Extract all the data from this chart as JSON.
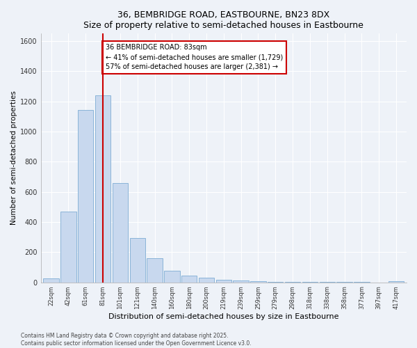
{
  "title": "36, BEMBRIDGE ROAD, EASTBOURNE, BN23 8DX",
  "subtitle": "Size of property relative to semi-detached houses in Eastbourne",
  "xlabel": "Distribution of semi-detached houses by size in Eastbourne",
  "ylabel": "Number of semi-detached properties",
  "bar_labels": [
    "22sqm",
    "42sqm",
    "61sqm",
    "81sqm",
    "101sqm",
    "121sqm",
    "140sqm",
    "160sqm",
    "180sqm",
    "200sqm",
    "219sqm",
    "239sqm",
    "259sqm",
    "279sqm",
    "298sqm",
    "318sqm",
    "338sqm",
    "358sqm",
    "377sqm",
    "397sqm",
    "417sqm"
  ],
  "bar_values": [
    25,
    470,
    1145,
    1240,
    660,
    295,
    160,
    75,
    45,
    30,
    18,
    12,
    8,
    5,
    3,
    2,
    1,
    1,
    1,
    0,
    8
  ],
  "bar_color": "#c8d8ee",
  "bar_edge_color": "#8ab4d8",
  "property_bin_index": 3,
  "vline_color": "#cc0000",
  "annotation_line1": "36 BEMBRIDGE ROAD: 83sqm",
  "annotation_line2": "← 41% of semi-detached houses are smaller (1,729)",
  "annotation_line3": "57% of semi-detached houses are larger (2,381) →",
  "annotation_box_color": "#ffffff",
  "annotation_box_edge_color": "#cc0000",
  "footer_text": "Contains HM Land Registry data © Crown copyright and database right 2025.\nContains public sector information licensed under the Open Government Licence v3.0.",
  "background_color": "#eef2f8",
  "grid_color": "#ffffff",
  "ylim": [
    0,
    1650
  ],
  "yticks": [
    0,
    200,
    400,
    600,
    800,
    1000,
    1200,
    1400,
    1600
  ]
}
